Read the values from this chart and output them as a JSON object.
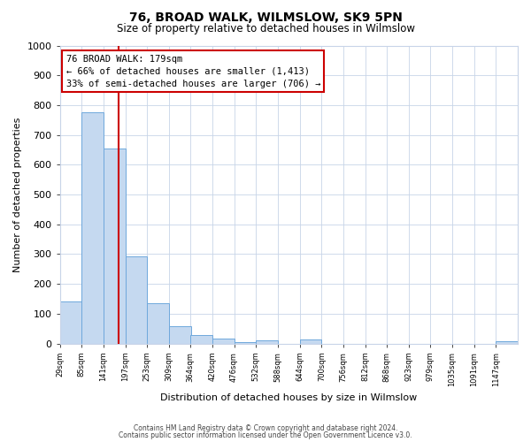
{
  "title": "76, BROAD WALK, WILMSLOW, SK9 5PN",
  "subtitle": "Size of property relative to detached houses in Wilmslow",
  "xlabel": "Distribution of detached houses by size in Wilmslow",
  "ylabel": "Number of detached properties",
  "bin_labels": [
    "29sqm",
    "85sqm",
    "141sqm",
    "197sqm",
    "253sqm",
    "309sqm",
    "364sqm",
    "420sqm",
    "476sqm",
    "532sqm",
    "588sqm",
    "644sqm",
    "700sqm",
    "756sqm",
    "812sqm",
    "868sqm",
    "923sqm",
    "979sqm",
    "1035sqm",
    "1091sqm",
    "1147sqm"
  ],
  "bin_edges": [
    29,
    85,
    141,
    197,
    253,
    309,
    364,
    420,
    476,
    532,
    588,
    644,
    700,
    756,
    812,
    868,
    923,
    979,
    1035,
    1091,
    1147
  ],
  "bar_heights": [
    140,
    775,
    655,
    293,
    135,
    57,
    30,
    17,
    5,
    12,
    0,
    14,
    0,
    0,
    0,
    0,
    0,
    0,
    0,
    0,
    7
  ],
  "bar_color": "#c5d9f0",
  "bar_edge_color": "#6fa8dc",
  "property_line_x": 179,
  "property_line_color": "#cc0000",
  "annotation_title": "76 BROAD WALK: 179sqm",
  "annotation_line1": "← 66% of detached houses are smaller (1,413)",
  "annotation_line2": "33% of semi-detached houses are larger (706) →",
  "annotation_box_color": "#cc0000",
  "ylim": [
    0,
    1000
  ],
  "yticks": [
    0,
    100,
    200,
    300,
    400,
    500,
    600,
    700,
    800,
    900,
    1000
  ],
  "footer1": "Contains HM Land Registry data © Crown copyright and database right 2024.",
  "footer2": "Contains public sector information licensed under the Open Government Licence v3.0.",
  "background_color": "#ffffff",
  "grid_color": "#c8d4e8"
}
